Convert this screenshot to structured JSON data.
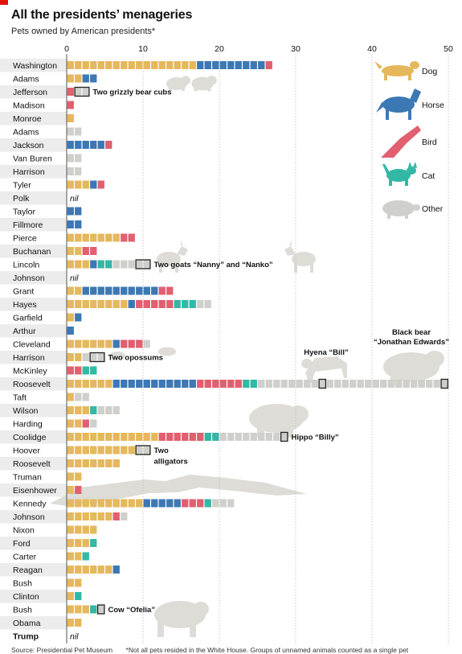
{
  "header": {
    "title": "All the presidents’ menageries",
    "subtitle": "Pets owned by American presidents*"
  },
  "footer": {
    "source": "Source: Presidential Pet Museum",
    "note": "*Not all pets resided in the White House. Groups of unnamed animals counted as a single pet"
  },
  "colors": {
    "dog": "#e6b85c",
    "horse": "#3c78b4",
    "bird": "#e06070",
    "cat": "#33b8a6",
    "other": "#cfcfcb",
    "silhouette": "#dddcd6",
    "row_band": "#ececec",
    "grid": "#bbbbbb"
  },
  "chart_data": {
    "type": "bar",
    "stacked": true,
    "xlim": [
      0,
      50
    ],
    "xticks": [
      "0",
      "10",
      "20",
      "30",
      "40",
      "50"
    ],
    "grid": true,
    "legend_position": "right",
    "series": [
      {
        "name": "Dog",
        "key": "dog",
        "icon": "dog-icon"
      },
      {
        "name": "Horse",
        "key": "horse",
        "icon": "horse-icon"
      },
      {
        "name": "Bird",
        "key": "bird",
        "icon": "bird-icon"
      },
      {
        "name": "Cat",
        "key": "cat",
        "icon": "cat-icon"
      },
      {
        "name": "Other",
        "key": "other",
        "icon": "pig-icon"
      }
    ],
    "rows": [
      {
        "president": "Washington",
        "dog": 17,
        "horse": 9,
        "bird": 1,
        "cat": 0,
        "other": 0
      },
      {
        "president": "Adams",
        "dog": 2,
        "horse": 2,
        "bird": 0,
        "cat": 0,
        "other": 0
      },
      {
        "president": "Jefferson",
        "dog": 0,
        "horse": 0,
        "bird": 1,
        "cat": 0,
        "other": 2,
        "highlight": {
          "start": 1,
          "count": 2
        },
        "annotation": "Two grizzly bear cubs"
      },
      {
        "president": "Madison",
        "dog": 0,
        "horse": 0,
        "bird": 1,
        "cat": 0,
        "other": 0
      },
      {
        "president": "Monroe",
        "dog": 1,
        "horse": 0,
        "bird": 0,
        "cat": 0,
        "other": 0
      },
      {
        "president": "Adams",
        "dog": 0,
        "horse": 0,
        "bird": 0,
        "cat": 0,
        "other": 2
      },
      {
        "president": "Jackson",
        "dog": 0,
        "horse": 5,
        "bird": 1,
        "cat": 0,
        "other": 0
      },
      {
        "president": "Van Buren",
        "dog": 0,
        "horse": 0,
        "bird": 0,
        "cat": 0,
        "other": 2
      },
      {
        "president": "Harrison",
        "dog": 0,
        "horse": 0,
        "bird": 0,
        "cat": 0,
        "other": 2
      },
      {
        "president": "Tyler",
        "dog": 3,
        "horse": 1,
        "bird": 1,
        "cat": 0,
        "other": 0
      },
      {
        "president": "Polk",
        "dog": 0,
        "horse": 0,
        "bird": 0,
        "cat": 0,
        "other": 0,
        "nil": "nil"
      },
      {
        "president": "Taylor",
        "dog": 0,
        "horse": 2,
        "bird": 0,
        "cat": 0,
        "other": 0
      },
      {
        "president": "Fillmore",
        "dog": 0,
        "horse": 2,
        "bird": 0,
        "cat": 0,
        "other": 0
      },
      {
        "president": "Pierce",
        "dog": 7,
        "horse": 0,
        "bird": 2,
        "cat": 0,
        "other": 0
      },
      {
        "president": "Buchanan",
        "dog": 2,
        "horse": 0,
        "bird": 2,
        "cat": 0,
        "other": 0
      },
      {
        "president": "Lincoln",
        "dog": 3,
        "horse": 1,
        "bird": 0,
        "cat": 2,
        "other": 5,
        "highlight": {
          "start": 9,
          "count": 2
        },
        "annotation": "Two goats “Nanny” and “Nanko”"
      },
      {
        "president": "Johnson",
        "dog": 0,
        "horse": 0,
        "bird": 0,
        "cat": 0,
        "other": 0,
        "nil": "nil"
      },
      {
        "president": "Grant",
        "dog": 2,
        "horse": 10,
        "bird": 2,
        "cat": 0,
        "other": 0
      },
      {
        "president": "Hayes",
        "dog": 8,
        "horse": 1,
        "bird": 5,
        "cat": 3,
        "other": 2
      },
      {
        "president": "Garfield",
        "dog": 1,
        "horse": 1,
        "bird": 0,
        "cat": 0,
        "other": 0
      },
      {
        "president": "Arthur",
        "dog": 0,
        "horse": 1,
        "bird": 0,
        "cat": 0,
        "other": 0
      },
      {
        "president": "Cleveland",
        "dog": 6,
        "horse": 1,
        "bird": 3,
        "cat": 0,
        "other": 1
      },
      {
        "president": "Harrison",
        "dog": 2,
        "horse": 0,
        "bird": 0,
        "cat": 0,
        "other": 3,
        "highlight": {
          "start": 3,
          "count": 2
        },
        "annotation": "Two opossums"
      },
      {
        "president": "McKinley",
        "dog": 0,
        "horse": 0,
        "bird": 2,
        "cat": 2,
        "other": 0
      },
      {
        "president": "Roosevelt",
        "dog": 6,
        "horse": 11,
        "bird": 6,
        "cat": 2,
        "other": 25,
        "highlights": [
          33,
          49
        ],
        "annotations_above": [
          "Hyena “Bill”",
          "Black bear",
          "“Jonathan Edwards”"
        ]
      },
      {
        "president": "Taft",
        "dog": 1,
        "horse": 0,
        "bird": 0,
        "cat": 0,
        "other": 2
      },
      {
        "president": "Wilson",
        "dog": 3,
        "horse": 0,
        "bird": 0,
        "cat": 1,
        "other": 3
      },
      {
        "president": "Harding",
        "dog": 2,
        "horse": 0,
        "bird": 1,
        "cat": 0,
        "other": 1
      },
      {
        "president": "Coolidge",
        "dog": 12,
        "horse": 0,
        "bird": 6,
        "cat": 2,
        "other": 9,
        "highlight": {
          "start": 28,
          "count": 1
        },
        "annotation": "Hippo “Billy”"
      },
      {
        "president": "Hoover",
        "dog": 9,
        "horse": 0,
        "bird": 0,
        "cat": 0,
        "other": 2,
        "highlight": {
          "start": 9,
          "count": 2
        },
        "annotation": "Two",
        "annotation2": "alligators"
      },
      {
        "president": "Roosevelt",
        "dog": 7,
        "horse": 0,
        "bird": 0,
        "cat": 0,
        "other": 0
      },
      {
        "president": "Truman",
        "dog": 2,
        "horse": 0,
        "bird": 0,
        "cat": 0,
        "other": 0
      },
      {
        "president": "Eisenhower",
        "dog": 1,
        "horse": 0,
        "bird": 1,
        "cat": 0,
        "other": 0
      },
      {
        "president": "Kennedy",
        "dog": 10,
        "horse": 5,
        "bird": 3,
        "cat": 1,
        "other": 3
      },
      {
        "president": "Johnson",
        "dog": 6,
        "horse": 0,
        "bird": 1,
        "cat": 0,
        "other": 1
      },
      {
        "president": "Nixon",
        "dog": 4,
        "horse": 0,
        "bird": 0,
        "cat": 0,
        "other": 0
      },
      {
        "president": "Ford",
        "dog": 3,
        "horse": 0,
        "bird": 0,
        "cat": 1,
        "other": 0
      },
      {
        "president": "Carter",
        "dog": 2,
        "horse": 0,
        "bird": 0,
        "cat": 1,
        "other": 0
      },
      {
        "president": "Reagan",
        "dog": 6,
        "horse": 1,
        "bird": 0,
        "cat": 0,
        "other": 0
      },
      {
        "president": "Bush",
        "dog": 2,
        "horse": 0,
        "bird": 0,
        "cat": 0,
        "other": 0
      },
      {
        "president": "Clinton",
        "dog": 1,
        "horse": 0,
        "bird": 0,
        "cat": 1,
        "other": 0
      },
      {
        "president": "Bush",
        "dog": 3,
        "horse": 0,
        "bird": 0,
        "cat": 1,
        "other": 1,
        "highlight": {
          "start": 4,
          "count": 1
        },
        "annotation": "Cow “Ofelia”"
      },
      {
        "president": "Obama",
        "dog": 2,
        "horse": 0,
        "bird": 0,
        "cat": 0,
        "other": 0
      },
      {
        "president": "Trump",
        "dog": 0,
        "horse": 0,
        "bird": 0,
        "cat": 0,
        "other": 0,
        "nil": "nil",
        "bold": true
      }
    ]
  }
}
